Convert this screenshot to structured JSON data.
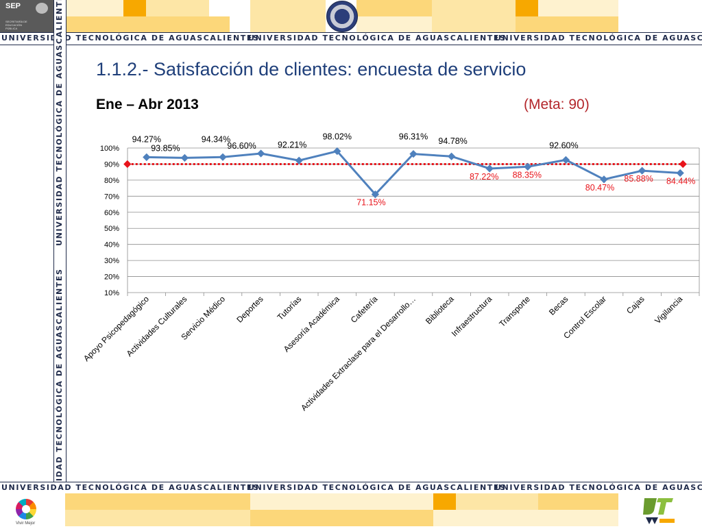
{
  "header": {
    "sep_logo_text": "SEP",
    "sep_logo_subtext": "SECRETARÍA DE EDUCACIÓN PÚBLICA",
    "banner_text": "UNIVERSIDAD TECNOLÓGICA DE AGUASCALIENTES",
    "top_strip_colors": [
      "#ffffff",
      "#fde6a6",
      "#fcd77a",
      "#f7a800",
      "#fef2cf"
    ]
  },
  "footer": {
    "left_logo_label": "Vivir Mejor"
  },
  "slide": {
    "title": "1.1.2.- Satisfacción de clientes: encuesta de servicio",
    "period": "Ene – Abr 2013",
    "goal": "(Meta: 90)"
  },
  "colors": {
    "series_line": "#4f81bd",
    "goal_line": "#e8141b",
    "below_goal_label": "#e8141b",
    "above_goal_label": "#000000",
    "title": "#1f3f7a"
  },
  "chart_data": {
    "type": "line",
    "title": "",
    "xlabel": "",
    "ylabel": "",
    "ylim": [
      0.1,
      1.0
    ],
    "yticks": [
      "10%",
      "20%",
      "30%",
      "40%",
      "50%",
      "60%",
      "70%",
      "80%",
      "90%",
      "100%"
    ],
    "grid": true,
    "categories": [
      "Apoyo Psicopedagógico",
      "Actividades Culturales",
      "Servicio Médico",
      "Deportes",
      "Tutorías",
      "Asesoría Académica",
      "Cafetería",
      "Actividades Extraclase para el Desarrollo…",
      "Biblioteca",
      "Infraestructura",
      "Transporte",
      "Becas",
      "Control Escolar",
      "Cajas",
      "Vigilancia"
    ],
    "series": [
      {
        "values": [
          0.9427,
          0.9385,
          0.9434,
          0.966,
          0.9221,
          0.9802,
          0.7115,
          0.9631,
          0.9478,
          0.8722,
          0.8835,
          0.926,
          0.8047,
          0.8588,
          0.8444
        ],
        "labels": [
          "94.27%",
          "93.85%",
          "94.34%",
          "96.60%",
          "92.21%",
          "98.02%",
          "71.15%",
          "96.31%",
          "94.78%",
          "87.22%",
          "88.35%",
          "92.60%",
          "80.47%",
          "85.88%",
          "84.44%"
        ]
      }
    ],
    "goal": 0.9
  }
}
